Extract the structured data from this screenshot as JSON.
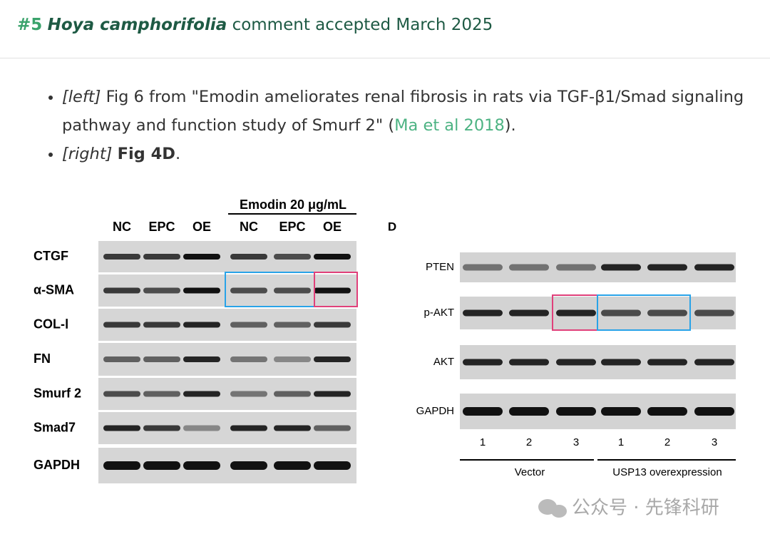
{
  "header": {
    "number": "#5",
    "species": "Hoya camphorifolia",
    "text": "comment accepted March 2025"
  },
  "bullets": [
    {
      "tag": "[left]",
      "text": "Fig 6 from \"Emodin ameliorates renal fibrosis in rats via TGF-β1/Smad signaling pathway and function study of Smurf 2\" (",
      "link": "Ma et al 2018",
      "tail": ")."
    },
    {
      "tag": "[right]",
      "bold": "Fig 4D",
      "tail": "."
    }
  ],
  "left_figure": {
    "group_label": "Emodin 20 μg/mL",
    "lanes": [
      "NC",
      "EPC",
      "OE",
      "NC",
      "EPC",
      "OE"
    ],
    "rows": [
      "CTGF",
      "α-SMA",
      "COL-Ⅰ",
      "FN",
      "Smurf 2",
      "Smad7",
      "GAPDH"
    ]
  },
  "right_figure": {
    "panel_label": "D",
    "rows": [
      "PTEN",
      "p-AKT",
      "AKT",
      "GAPDH"
    ],
    "lanes": [
      "1",
      "2",
      "3",
      "1",
      "2",
      "3"
    ],
    "groups": [
      "Vector",
      "USP13 overexpression"
    ]
  },
  "watermark": "公众号 · 先锋科研"
}
